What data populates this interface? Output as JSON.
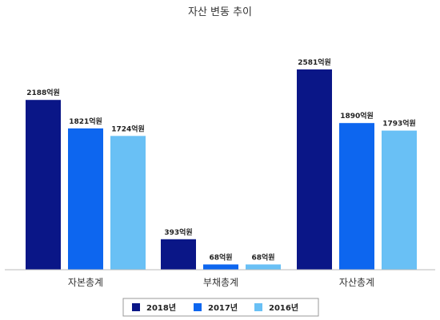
{
  "chart_data": {
    "type": "bar",
    "title": "자산 변동 추이",
    "categories": [
      "자본총계",
      "부채총계",
      "자산총계"
    ],
    "series": [
      {
        "name": "2018년",
        "color": "#0a1687",
        "values": [
          2188,
          393,
          2581
        ],
        "labels": [
          "2188억원",
          "393억원",
          "2581억원"
        ]
      },
      {
        "name": "2017년",
        "color": "#0d66ef",
        "values": [
          1821,
          68,
          1890
        ],
        "labels": [
          "1821억원",
          "68억원",
          "1890억원"
        ]
      },
      {
        "name": "2016년",
        "color": "#69c0f5",
        "values": [
          1724,
          68,
          1793
        ],
        "labels": [
          "1724억원",
          "68억원",
          "1793억원"
        ]
      }
    ],
    "xlabel": "",
    "ylabel": "",
    "ylim": [
      0,
      2581
    ],
    "grid": false,
    "legend": "bottom"
  }
}
